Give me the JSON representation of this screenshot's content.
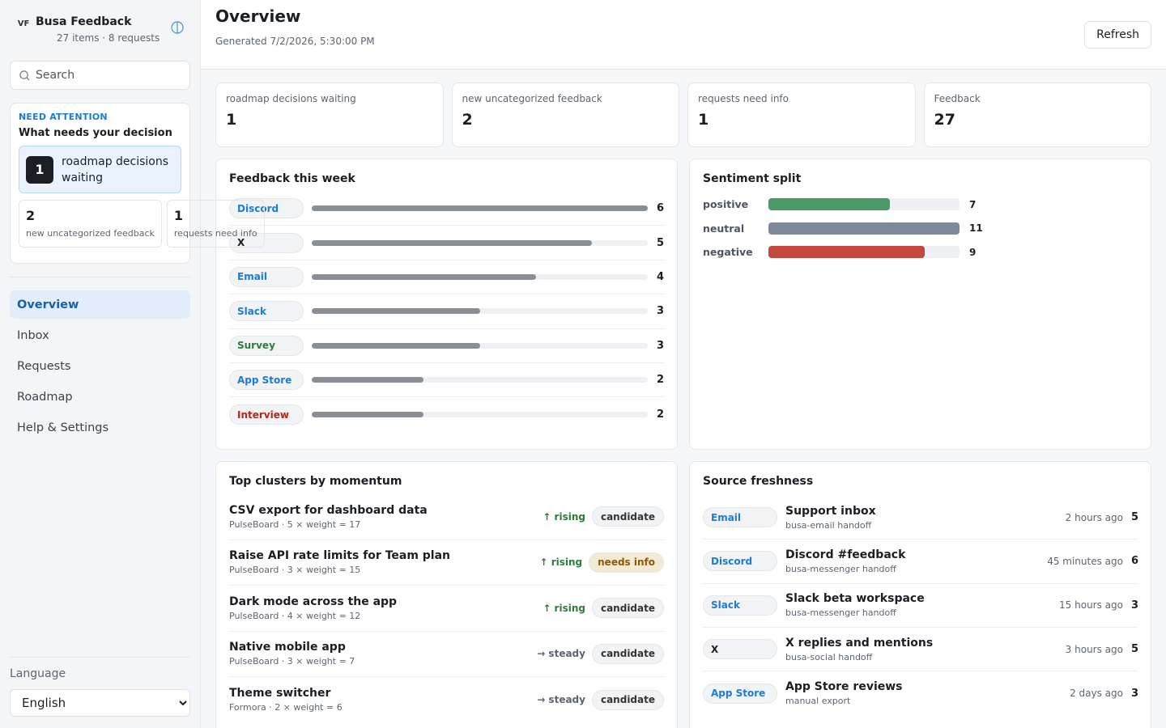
{
  "brand": {
    "logo": "VF",
    "title": "Busa Feedback",
    "subtitle": "27 items · 8 requests"
  },
  "search": {
    "placeholder": "Search"
  },
  "attention": {
    "kicker": "NEED ATTENTION",
    "title": "What needs your decision",
    "main": {
      "count": "1",
      "label": "roadmap decisions waiting"
    },
    "minis": [
      {
        "count": "2",
        "label": "new uncategorized feedback"
      },
      {
        "count": "1",
        "label": "requests need info"
      }
    ]
  },
  "nav": [
    {
      "label": "Overview",
      "active": true
    },
    {
      "label": "Inbox"
    },
    {
      "label": "Requests"
    },
    {
      "label": "Roadmap"
    },
    {
      "label": "Help & Settings"
    }
  ],
  "language": {
    "label": "Language",
    "selected": "English"
  },
  "header": {
    "title": "Overview",
    "generated": "Generated 7/2/2026, 5:30:00 PM",
    "refresh": "Refresh"
  },
  "stats": [
    {
      "label": "roadmap decisions waiting",
      "value": "1"
    },
    {
      "label": "new uncategorized feedback",
      "value": "2"
    },
    {
      "label": "requests need info",
      "value": "1"
    },
    {
      "label": "Feedback",
      "value": "27"
    }
  ],
  "feedback_week": {
    "title": "Feedback this week",
    "max": 6,
    "rows": [
      {
        "source": "Discord",
        "count": 6,
        "color": "#1c7bd6"
      },
      {
        "source": "X",
        "count": 5,
        "color": "#1b1f24"
      },
      {
        "source": "Email",
        "count": 4,
        "color": "#1c7bd6"
      },
      {
        "source": "Slack",
        "count": 3,
        "color": "#1c7bd6"
      },
      {
        "source": "Survey",
        "count": 3,
        "color": "#2f7a3c"
      },
      {
        "source": "App Store",
        "count": 2,
        "color": "#1c7bd6"
      },
      {
        "source": "Interview",
        "count": 2,
        "color": "#b3261e"
      }
    ]
  },
  "sentiment": {
    "title": "Sentiment split",
    "max": 11,
    "rows": [
      {
        "label": "positive",
        "count": 7,
        "color": "#4a9a68"
      },
      {
        "label": "neutral",
        "count": 11,
        "color": "#7d8a9c"
      },
      {
        "label": "negative",
        "count": 9,
        "color": "#c5483f"
      }
    ]
  },
  "clusters": {
    "title": "Top clusters by momentum",
    "rows": [
      {
        "title": "CSV export for dashboard data",
        "meta": "PulseBoard · 5 × weight = 17",
        "trend": "↑ rising",
        "trend_color": "#2f7a3c",
        "status": "candidate",
        "status_bg": "#f1f3f5",
        "status_color": "#333"
      },
      {
        "title": "Raise API rate limits for Team plan",
        "meta": "PulseBoard · 3 × weight = 15",
        "trend": "↑ rising",
        "trend_color": "#2f7a3c",
        "status": "needs info",
        "status_bg": "#f3ead6",
        "status_color": "#8a5a00"
      },
      {
        "title": "Dark mode across the app",
        "meta": "PulseBoard · 4 × weight = 12",
        "trend": "↑ rising",
        "trend_color": "#2f7a3c",
        "status": "candidate",
        "status_bg": "#f1f3f5",
        "status_color": "#333"
      },
      {
        "title": "Native mobile app",
        "meta": "PulseBoard · 3 × weight = 7",
        "trend": "→ steady",
        "trend_color": "#5c6570",
        "status": "candidate",
        "status_bg": "#f1f3f5",
        "status_color": "#333"
      },
      {
        "title": "Theme switcher",
        "meta": "Formora · 2 × weight = 6",
        "trend": "→ steady",
        "trend_color": "#5c6570",
        "status": "candidate",
        "status_bg": "#f1f3f5",
        "status_color": "#333"
      }
    ]
  },
  "freshness": {
    "title": "Source freshness",
    "rows": [
      {
        "source": "Email",
        "color": "#1c7bd6",
        "name": "Support inbox",
        "sub": "busa-email handoff",
        "ago": "2 hours ago",
        "count": "5"
      },
      {
        "source": "Discord",
        "color": "#1c7bd6",
        "name": "Discord #feedback",
        "sub": "busa-messenger handoff",
        "ago": "45 minutes ago",
        "count": "6"
      },
      {
        "source": "Slack",
        "color": "#1c7bd6",
        "name": "Slack beta workspace",
        "sub": "busa-messenger handoff",
        "ago": "15 hours ago",
        "count": "3"
      },
      {
        "source": "X",
        "color": "#1b1f24",
        "name": "X replies and mentions",
        "sub": "busa-social handoff",
        "ago": "3 hours ago",
        "count": "5"
      },
      {
        "source": "App Store",
        "color": "#1c7bd6",
        "name": "App Store reviews",
        "sub": "manual export",
        "ago": "2 days ago",
        "count": "3"
      }
    ]
  }
}
